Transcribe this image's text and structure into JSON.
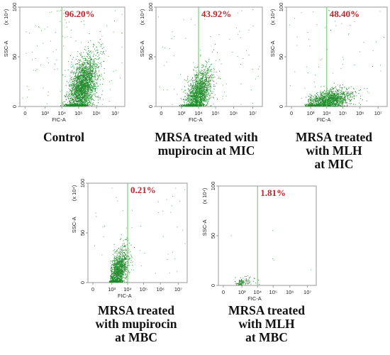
{
  "chart_data": [
    {
      "type": "scatter",
      "xlabel": "FIC-A",
      "ylabel": "SSC-A",
      "yscale_label": "(x 10⁴)",
      "xscale": "log",
      "xticks": [
        "0",
        "10³",
        "10⁴",
        "10⁵",
        "10⁶",
        "10⁷"
      ],
      "yticks": [
        "0",
        "50",
        "100"
      ],
      "ylim": [
        0,
        100
      ],
      "gate_x": 10000,
      "gate_percentage": "96.20%",
      "caption": [
        "Control"
      ],
      "cluster": {
        "x_center": 150000,
        "y_center": 18,
        "count": 2600,
        "x_spread_log": 0.42,
        "y_spread": 14,
        "skew": 0.55
      }
    },
    {
      "type": "scatter",
      "xlabel": "FIC-A",
      "ylabel": "SSC-A",
      "yscale_label": "(x 10⁴)",
      "xscale": "log",
      "xticks": [
        "0",
        "10³",
        "10⁴",
        "10⁵",
        "10⁶",
        "10⁷"
      ],
      "yticks": [
        "0",
        "50",
        "100"
      ],
      "ylim": [
        0,
        100
      ],
      "gate_x": 10000,
      "gate_percentage": "43.92%",
      "caption": [
        "MRSA treated with",
        "mupirocin at MIC"
      ],
      "cluster": {
        "x_center": 9000,
        "y_center": 12,
        "count": 1800,
        "x_spread_log": 0.38,
        "y_spread": 11,
        "skew": 0.6
      }
    },
    {
      "type": "scatter",
      "xlabel": "FIC-A",
      "ylabel": "SSC-A",
      "yscale_label": "(x 10⁴)",
      "xscale": "log",
      "xticks": [
        "0",
        "10³",
        "10⁴",
        "10⁵",
        "10⁶",
        "10⁷"
      ],
      "yticks": [
        "0",
        "50",
        "100"
      ],
      "ylim": [
        0,
        100
      ],
      "gate_x": 10000,
      "gate_percentage": "48.40%",
      "caption": [
        "MRSA treated",
        "with MLH",
        "at MIC"
      ],
      "cluster": {
        "x_center": 12000,
        "y_center": 6,
        "count": 1500,
        "x_spread_log": 0.7,
        "y_spread": 5,
        "skew": 0.45
      }
    },
    {
      "type": "scatter",
      "xlabel": "FIC-A",
      "ylabel": "SSC-A",
      "yscale_label": "(x 10⁴)",
      "xscale": "log",
      "xticks": [
        "0",
        "10³",
        "10⁴",
        "10⁵",
        "10⁶",
        "10⁷"
      ],
      "yticks": [
        "0",
        "50",
        "100"
      ],
      "ylim": [
        0,
        100
      ],
      "gate_x": 10000,
      "gate_percentage": "0.21%",
      "caption": [
        "MRSA treated",
        "with mupirocin",
        "at MBC"
      ],
      "cluster": {
        "x_center": 2500,
        "y_center": 12,
        "count": 1300,
        "x_spread_log": 0.3,
        "y_spread": 10,
        "skew": 0.6
      }
    },
    {
      "type": "scatter",
      "xlabel": "FIC-A",
      "ylabel": "SSC-A",
      "yscale_label": "(x 10⁴)",
      "xscale": "log",
      "xticks": [
        "0",
        "10³",
        "10⁴",
        "10⁵",
        "10⁶",
        "10⁷"
      ],
      "yticks": [
        "0",
        "50",
        "100"
      ],
      "ylim": [
        0,
        100
      ],
      "gate_x": 10000,
      "gate_percentage": "1.81%",
      "caption": [
        "MRSA treated",
        "with MLH",
        "at MBC"
      ],
      "cluster": {
        "x_center": 800,
        "y_center": 3,
        "count": 120,
        "x_spread_log": 0.45,
        "y_spread": 2.5,
        "skew": 0.3
      }
    }
  ],
  "colors": {
    "dots": "#1f8a2a",
    "gate_line": "#5fc85f",
    "percentage": "#c0262d",
    "axes": "#9a9a9a"
  }
}
